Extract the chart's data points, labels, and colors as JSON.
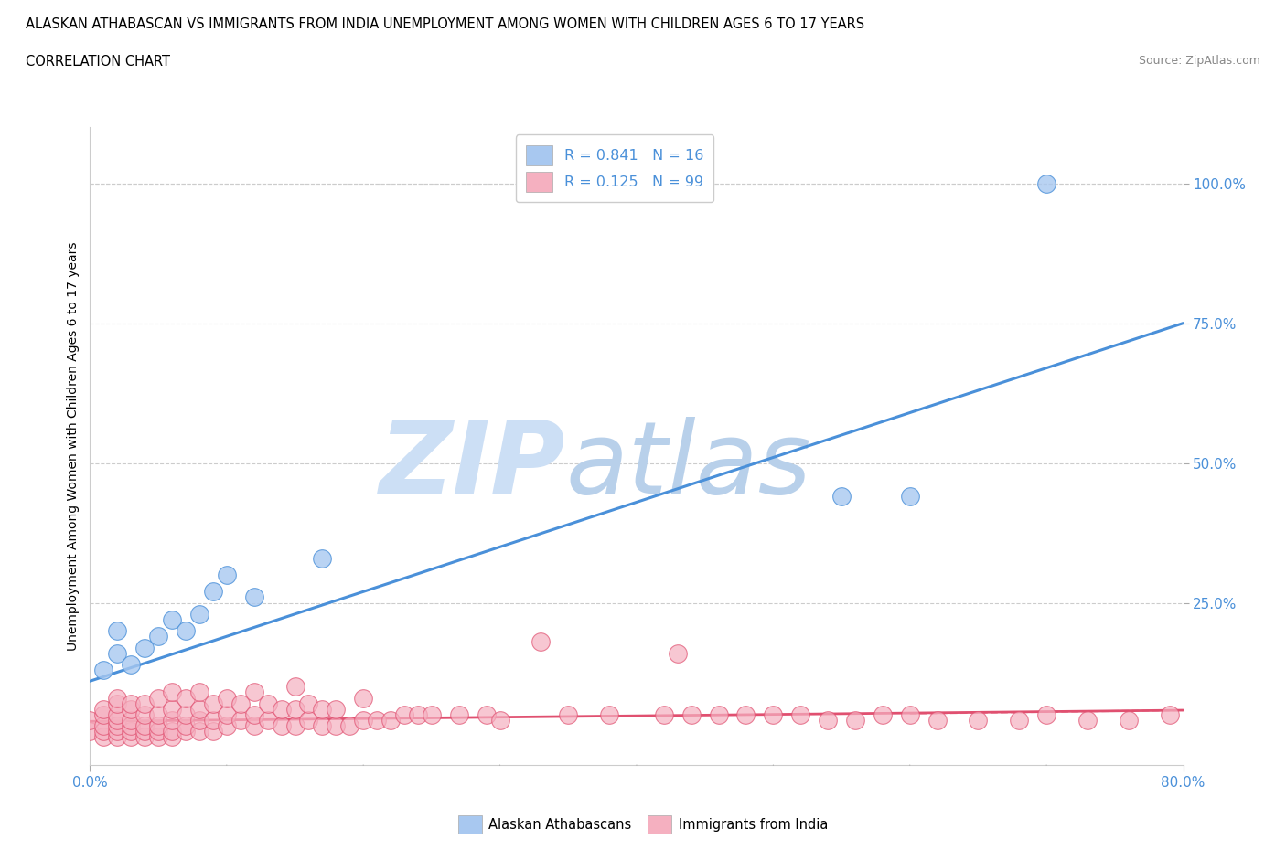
{
  "title_line1": "ALASKAN ATHABASCAN VS IMMIGRANTS FROM INDIA UNEMPLOYMENT AMONG WOMEN WITH CHILDREN AGES 6 TO 17 YEARS",
  "title_line2": "CORRELATION CHART",
  "source_text": "Source: ZipAtlas.com",
  "ylabel_label": "Unemployment Among Women with Children Ages 6 to 17 years",
  "ytick_labels": [
    "25.0%",
    "50.0%",
    "75.0%",
    "100.0%"
  ],
  "ytick_values": [
    0.25,
    0.5,
    0.75,
    1.0
  ],
  "xmin": 0.0,
  "xmax": 0.8,
  "ymin": -0.04,
  "ymax": 1.1,
  "blue_R": 0.841,
  "blue_N": 16,
  "pink_R": 0.125,
  "pink_N": 99,
  "blue_color": "#a8c8f0",
  "pink_color": "#f5b0c0",
  "blue_line_color": "#4a90d9",
  "pink_line_color": "#e05070",
  "watermark_zip_color": "#ccdff5",
  "watermark_atlas_color": "#b8d0ea",
  "legend_label_blue": "Alaskan Athabascans",
  "legend_label_pink": "Immigrants from India",
  "blue_scatter_x": [
    0.01,
    0.02,
    0.02,
    0.03,
    0.04,
    0.05,
    0.06,
    0.07,
    0.08,
    0.09,
    0.1,
    0.12,
    0.17,
    0.55,
    0.6,
    0.7
  ],
  "blue_scatter_y": [
    0.13,
    0.16,
    0.2,
    0.14,
    0.17,
    0.19,
    0.22,
    0.2,
    0.23,
    0.27,
    0.3,
    0.26,
    0.33,
    0.44,
    0.44,
    1.0
  ],
  "pink_scatter_x": [
    0.0,
    0.0,
    0.01,
    0.01,
    0.01,
    0.01,
    0.01,
    0.02,
    0.02,
    0.02,
    0.02,
    0.02,
    0.02,
    0.02,
    0.03,
    0.03,
    0.03,
    0.03,
    0.03,
    0.03,
    0.04,
    0.04,
    0.04,
    0.04,
    0.04,
    0.05,
    0.05,
    0.05,
    0.05,
    0.05,
    0.06,
    0.06,
    0.06,
    0.06,
    0.06,
    0.07,
    0.07,
    0.07,
    0.07,
    0.08,
    0.08,
    0.08,
    0.08,
    0.09,
    0.09,
    0.09,
    0.1,
    0.1,
    0.1,
    0.11,
    0.11,
    0.12,
    0.12,
    0.12,
    0.13,
    0.13,
    0.14,
    0.14,
    0.15,
    0.15,
    0.15,
    0.16,
    0.16,
    0.17,
    0.17,
    0.18,
    0.18,
    0.19,
    0.2,
    0.2,
    0.21,
    0.22,
    0.23,
    0.24,
    0.25,
    0.27,
    0.29,
    0.3,
    0.33,
    0.35,
    0.38,
    0.42,
    0.43,
    0.44,
    0.46,
    0.48,
    0.5,
    0.52,
    0.54,
    0.56,
    0.58,
    0.6,
    0.62,
    0.65,
    0.68,
    0.7,
    0.73,
    0.76,
    0.79
  ],
  "pink_scatter_y": [
    0.02,
    0.04,
    0.01,
    0.02,
    0.03,
    0.05,
    0.06,
    0.01,
    0.02,
    0.03,
    0.04,
    0.05,
    0.07,
    0.08,
    0.01,
    0.02,
    0.03,
    0.04,
    0.06,
    0.07,
    0.01,
    0.02,
    0.03,
    0.05,
    0.07,
    0.01,
    0.02,
    0.03,
    0.05,
    0.08,
    0.01,
    0.02,
    0.04,
    0.06,
    0.09,
    0.02,
    0.03,
    0.05,
    0.08,
    0.02,
    0.04,
    0.06,
    0.09,
    0.02,
    0.04,
    0.07,
    0.03,
    0.05,
    0.08,
    0.04,
    0.07,
    0.03,
    0.05,
    0.09,
    0.04,
    0.07,
    0.03,
    0.06,
    0.03,
    0.06,
    0.1,
    0.04,
    0.07,
    0.03,
    0.06,
    0.03,
    0.06,
    0.03,
    0.04,
    0.08,
    0.04,
    0.04,
    0.05,
    0.05,
    0.05,
    0.05,
    0.05,
    0.04,
    0.18,
    0.05,
    0.05,
    0.05,
    0.16,
    0.05,
    0.05,
    0.05,
    0.05,
    0.05,
    0.04,
    0.04,
    0.05,
    0.05,
    0.04,
    0.04,
    0.04,
    0.05,
    0.04,
    0.04,
    0.05
  ],
  "blue_line_start_x": 0.0,
  "blue_line_start_y": 0.11,
  "blue_line_end_x": 0.8,
  "blue_line_end_y": 0.75,
  "pink_line_start_x": 0.0,
  "pink_line_start_y": 0.038,
  "pink_line_end_x": 0.8,
  "pink_line_end_y": 0.058
}
